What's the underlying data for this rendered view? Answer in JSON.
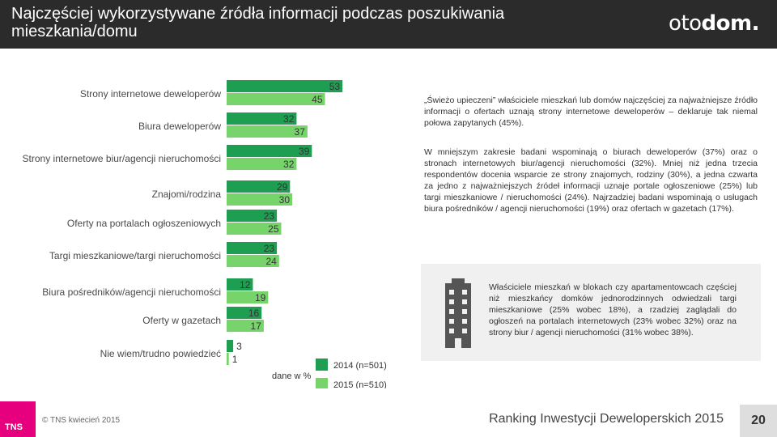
{
  "header": {
    "title": "Najczęściej wykorzystywane źródła informacji podczas poszukiwania mieszkania/domu",
    "logo_part1": "oto",
    "logo_part2": "dom."
  },
  "colors": {
    "series_2014": "#1e9e50",
    "series_2015": "#76d46a",
    "header_bg": "#2b2b2b",
    "brand_pink": "#e6007e"
  },
  "chart_data": {
    "type": "bar",
    "orientation": "horizontal",
    "categories": [
      "Strony internetowe deweloperów",
      "Biura deweloperów",
      "Strony internetowe biur/agencji nieruchomości",
      "Znajomi/rodzina",
      "Oferty na portalach ogłoszeniowych",
      "Targi mieszkaniowe/targi nieruchomości",
      "Biura pośredników/agencji nieruchomości",
      "Oferty w gazetach",
      "Nie wiem/trudno powiedzieć"
    ],
    "series": [
      {
        "name": "2014 (n=501)",
        "values": [
          53,
          32,
          39,
          29,
          23,
          23,
          12,
          16,
          3
        ]
      },
      {
        "name": "2015 (n=510)",
        "values": [
          45,
          37,
          32,
          30,
          25,
          24,
          19,
          17,
          1
        ]
      }
    ],
    "unit_note": "dane w %",
    "legend_position": "bottom",
    "grid": false,
    "xlim": [
      0,
      60
    ]
  },
  "paragraph1": "„Świeżo upieczeni” właściciele mieszkań lub domów najczęściej za najważniejsze źródło informacji o ofertach uznają strony internetowe deweloperów – deklaruje tak niemal połowa zapytanych (45%).",
  "paragraph2": "W mniejszym zakresie badani wspominają o biurach deweloperów (37%) oraz o stronach internetowych biur/agencji nieruchomości (32%). Mniej niż jedna trzecia respondentów docenia wsparcie ze strony znajomych, rodziny (30%), a jedna czwarta za jedno z najważniejszych źródeł informacji uznaje portale ogłoszeniowe (25%) lub targi mieszkaniowe / nieruchomości (24%). Najrzadziej badani wspominają o usługach biura pośredników / agencji nieruchomości (19%) oraz ofertach w gazetach (17%).",
  "info_box": {
    "icon": "building-icon",
    "text": "Właściciele mieszkań w blokach czy apartamentowcach częściej niż mieszkańcy domków jednorodzinnych odwiedzali targi mieszkaniowe (25% wobec 18%), a rzadziej zaglądali do ogłoszeń na portalach internetowych (23% wobec 32%) oraz na strony biur / agencji nieruchomości (31% wobec 38%)."
  },
  "footer": {
    "logo_text": "TNS",
    "copyright": "© TNS kwiecień 2015",
    "title": "Ranking Inwestycji Deweloperskich 2015",
    "page_number": "20"
  }
}
